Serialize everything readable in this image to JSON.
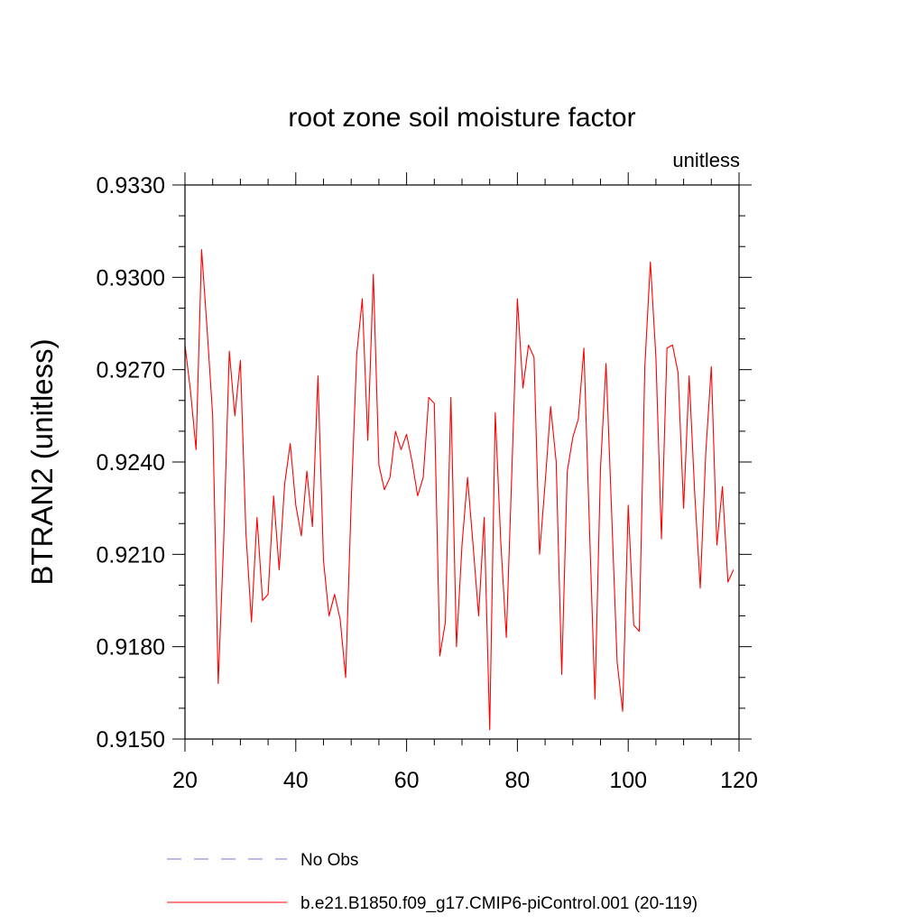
{
  "chart_data": {
    "type": "line",
    "title": "root zone soil moisture factor",
    "subtitle": "unitless",
    "ylabel": "BTRAN2  (unitless)",
    "xlabel": "",
    "xlim": [
      20,
      120
    ],
    "ylim": [
      0.915,
      0.933
    ],
    "x_ticks": [
      20,
      40,
      60,
      80,
      100,
      120
    ],
    "x_tick_labels": [
      "20",
      "40",
      "60",
      "80",
      "100",
      "120"
    ],
    "y_ticks": [
      0.915,
      0.918,
      0.921,
      0.924,
      0.927,
      0.93,
      0.933
    ],
    "y_tick_labels": [
      "0.9150",
      "0.9180",
      "0.9210",
      "0.9240",
      "0.9270",
      "0.9300",
      "0.9330"
    ],
    "grid": false,
    "legend_position": "bottom",
    "series": [
      {
        "name": "No Obs",
        "color": "#7b6fd6",
        "dash": "dashed",
        "x": [],
        "values": []
      },
      {
        "name": "b.e21.B1850.f09_g17.CMIP6-piControl.001 (20-119)",
        "color": "#ff0000",
        "dash": "solid",
        "x": [
          20,
          21,
          22,
          23,
          24,
          25,
          26,
          27,
          28,
          29,
          30,
          31,
          32,
          33,
          34,
          35,
          36,
          37,
          38,
          39,
          40,
          41,
          42,
          43,
          44,
          45,
          46,
          47,
          48,
          49,
          50,
          51,
          52,
          53,
          54,
          55,
          56,
          57,
          58,
          59,
          60,
          61,
          62,
          63,
          64,
          65,
          66,
          67,
          68,
          69,
          70,
          71,
          72,
          73,
          74,
          75,
          76,
          77,
          78,
          79,
          80,
          81,
          82,
          83,
          84,
          85,
          86,
          87,
          88,
          89,
          90,
          91,
          92,
          93,
          94,
          95,
          96,
          97,
          98,
          99,
          100,
          101,
          102,
          103,
          104,
          105,
          106,
          107,
          108,
          109,
          110,
          111,
          112,
          113,
          114,
          115,
          116,
          117,
          118,
          119
        ],
        "values": [
          0.9278,
          0.9263,
          0.9244,
          0.9309,
          0.9283,
          0.9255,
          0.9168,
          0.9215,
          0.9276,
          0.9255,
          0.9273,
          0.9217,
          0.9188,
          0.9222,
          0.9195,
          0.9197,
          0.9229,
          0.9205,
          0.9233,
          0.9246,
          0.9226,
          0.9216,
          0.9237,
          0.9219,
          0.9268,
          0.9208,
          0.919,
          0.9197,
          0.9189,
          0.917,
          0.9227,
          0.9275,
          0.9293,
          0.9247,
          0.9301,
          0.9239,
          0.9231,
          0.9235,
          0.925,
          0.9244,
          0.9249,
          0.924,
          0.9229,
          0.9235,
          0.9261,
          0.9259,
          0.9177,
          0.9188,
          0.9261,
          0.918,
          0.9213,
          0.9235,
          0.9213,
          0.919,
          0.9222,
          0.9153,
          0.9256,
          0.9214,
          0.9183,
          0.9237,
          0.9293,
          0.9264,
          0.9278,
          0.9274,
          0.921,
          0.9233,
          0.9258,
          0.924,
          0.9171,
          0.9237,
          0.9248,
          0.9254,
          0.9277,
          0.9219,
          0.9163,
          0.9238,
          0.9272,
          0.9224,
          0.9175,
          0.9159,
          0.9226,
          0.9187,
          0.9185,
          0.9271,
          0.9305,
          0.9274,
          0.9215,
          0.9277,
          0.9278,
          0.9269,
          0.9225,
          0.9268,
          0.923,
          0.9199,
          0.9243,
          0.9271,
          0.9213,
          0.9232,
          0.9201,
          0.9205
        ]
      }
    ]
  }
}
